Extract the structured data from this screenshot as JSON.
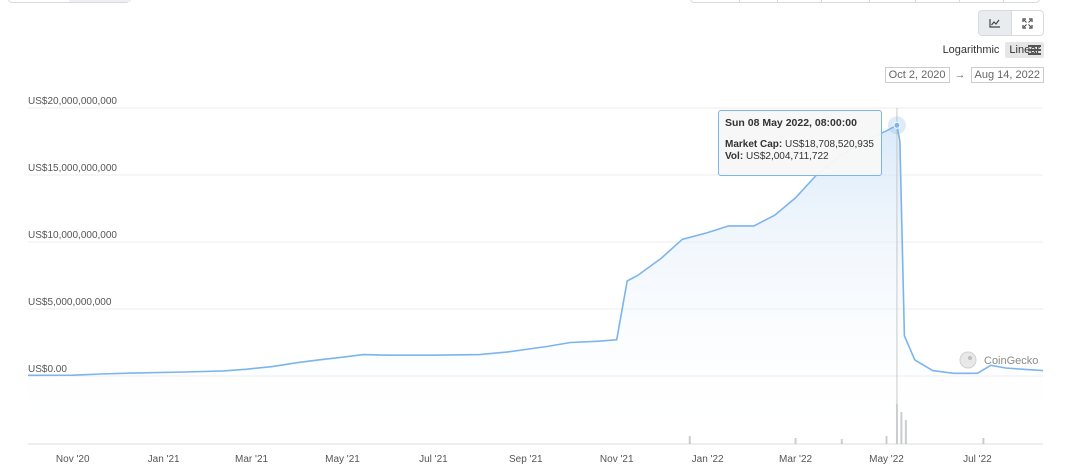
{
  "header": {
    "view_buttons": [
      {
        "icon": "line-chart-icon",
        "active": true
      },
      {
        "icon": "fullscreen-icon",
        "active": false
      }
    ],
    "scale_options": [
      "Logarithmic",
      "Linear"
    ],
    "selected_scale": "Linear",
    "menu_icon": "menu-icon",
    "date_range": {
      "from": "Oct 2, 2020",
      "arrow": "→",
      "to": "Aug 14, 2022"
    }
  },
  "tooltip": {
    "date": "Sun 08 May 2022, 08:00:00",
    "market_cap_label": "Market Cap:",
    "market_cap_value": "US$18,708,520,935",
    "vol_label": "Vol:",
    "vol_value": "US$2,004,711,722"
  },
  "watermark": {
    "text": "CoinGecko",
    "icon": "coingecko-logo-icon"
  },
  "colors": {
    "line": "#7cb5ec",
    "area_top": "#cfe3f7",
    "grid": "#e6e6e6",
    "volume": "#c8ccd2",
    "tooltip_border": "#7cb5ec"
  },
  "chart_data": {
    "type": "area",
    "series": [
      {
        "name": "Market Cap",
        "x": [
          "2020-10-02",
          "2020-11-01",
          "2020-11-20",
          "2020-12-15",
          "2021-01-15",
          "2021-02-10",
          "2021-02-25",
          "2021-03-15",
          "2021-04-01",
          "2021-04-15",
          "2021-05-01",
          "2021-05-15",
          "2021-06-01",
          "2021-07-01",
          "2021-08-01",
          "2021-08-20",
          "2021-09-15",
          "2021-10-01",
          "2021-10-20",
          "2021-11-01",
          "2021-11-08",
          "2021-11-15",
          "2021-12-01",
          "2021-12-15",
          "2022-01-01",
          "2022-01-15",
          "2022-02-01",
          "2022-02-15",
          "2022-03-01",
          "2022-03-15",
          "2022-04-01",
          "2022-04-15",
          "2022-05-01",
          "2022-05-08",
          "2022-05-10",
          "2022-05-13",
          "2022-05-20",
          "2022-06-01",
          "2022-06-15",
          "2022-07-01",
          "2022-07-10",
          "2022-07-20",
          "2022-08-01",
          "2022-08-14"
        ],
        "values": [
          50000000,
          60000000,
          150000000,
          230000000,
          300000000,
          380000000,
          500000000,
          700000000,
          1000000000,
          1200000000,
          1400000000,
          1600000000,
          1550000000,
          1550000000,
          1600000000,
          1800000000,
          2200000000,
          2500000000,
          2600000000,
          2700000000,
          7100000000,
          7500000000,
          8800000000,
          10200000000,
          10700000000,
          11200000000,
          11200000000,
          12000000000,
          13300000000,
          15000000000,
          16500000000,
          17500000000,
          18300000000,
          18708520935,
          17500000000,
          3000000000,
          1200000000,
          400000000,
          200000000,
          200000000,
          800000000,
          600000000,
          500000000,
          400000000
        ]
      },
      {
        "name": "Vol",
        "x": [
          "2021-12-20",
          "2022-03-01",
          "2022-04-01",
          "2022-05-01",
          "2022-05-08",
          "2022-05-11",
          "2022-05-14",
          "2022-07-05"
        ],
        "values": [
          400000000,
          300000000,
          250000000,
          400000000,
          2004711722,
          1600000000,
          1200000000,
          300000000
        ]
      }
    ],
    "yticks": [
      0,
      5000000000,
      10000000000,
      15000000000,
      20000000000
    ],
    "ytick_labels": [
      "US$0.00",
      "US$5,000,000,000",
      "US$10,000,000,000",
      "US$15,000,000,000",
      "US$20,000,000,000"
    ],
    "ylim": [
      -5000000000,
      20000000000
    ],
    "x_tick_dates": [
      "2020-11-01",
      "2021-01-01",
      "2021-03-01",
      "2021-05-01",
      "2021-07-01",
      "2021-09-01",
      "2021-11-01",
      "2022-01-01",
      "2022-03-01",
      "2022-05-01",
      "2022-07-01"
    ],
    "x_tick_labels": [
      "Nov '20",
      "Jan '21",
      "Mar '21",
      "May '21",
      "Jul '21",
      "Sep '21",
      "Nov '21",
      "Jan '22",
      "Mar '22",
      "May '22",
      "Jul '22"
    ],
    "xlim": [
      "2020-10-02",
      "2022-08-14"
    ],
    "highlight_date": "2022-05-08",
    "grid": true,
    "legend": "none"
  }
}
